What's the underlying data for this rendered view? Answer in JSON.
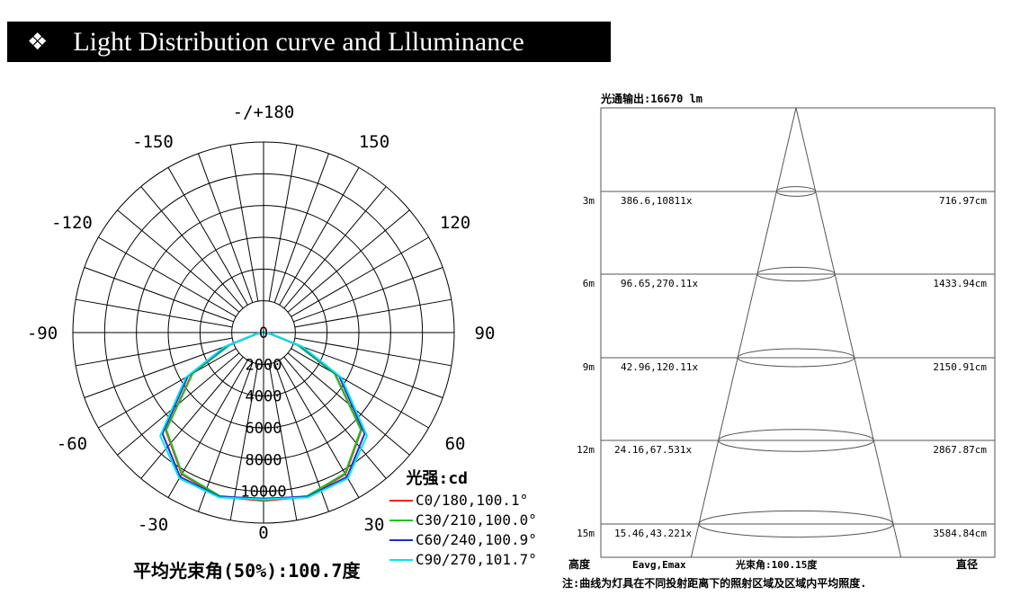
{
  "header": {
    "icon": "four-diamond-icon",
    "title": "Light Distribution curve and Llluminance"
  },
  "colors": {
    "c0": "#ff2020",
    "c30": "#22c022",
    "c60": "#1a2fd0",
    "c90": "#00e5f0"
  },
  "chart_data": [
    {
      "type": "polar",
      "angle_labels": [
        "-/+180",
        "150",
        "120",
        "90",
        "60",
        "30",
        "0",
        "-30",
        "-60",
        "-90",
        "-120",
        "-150"
      ],
      "radial_ticks": [
        0,
        2000,
        4000,
        6000,
        8000,
        10000
      ],
      "unit_label": "光强:cd",
      "series": [
        {
          "name": "C0/180,100.1°",
          "color": "#ff2020",
          "angles": [
            0,
            15,
            30,
            45,
            60,
            70,
            80,
            90
          ],
          "values": [
            10600,
            10700,
            10300,
            8700,
            5200,
            2300,
            450,
            0
          ]
        },
        {
          "name": "C30/210,100.0°",
          "color": "#22c022",
          "angles": [
            0,
            15,
            30,
            45,
            60,
            70,
            80,
            90
          ],
          "values": [
            10550,
            10650,
            10250,
            8650,
            5150,
            2250,
            430,
            0
          ]
        },
        {
          "name": "C60/240,100.9°",
          "color": "#1a2fd0",
          "angles": [
            0,
            15,
            30,
            45,
            60,
            70,
            80,
            90
          ],
          "values": [
            10450,
            10700,
            10500,
            9000,
            5500,
            2500,
            480,
            0
          ]
        },
        {
          "name": "C90/270,101.7°",
          "color": "#00e5f0",
          "angles": [
            0,
            15,
            30,
            45,
            60,
            70,
            80,
            90
          ],
          "values": [
            10500,
            10750,
            10600,
            9200,
            5650,
            2600,
            500,
            0
          ]
        }
      ],
      "footer": "平均光束角(50%):100.7度"
    },
    {
      "type": "table",
      "title": "光通输出:16670 lm",
      "rows": [
        {
          "height": "3m",
          "e": "386.6,10811x",
          "diameter": "716.97cm"
        },
        {
          "height": "6m",
          "e": "96.65,270.11x",
          "diameter": "1433.94cm"
        },
        {
          "height": "9m",
          "e": "42.96,120.11x",
          "diameter": "2150.91cm"
        },
        {
          "height": "12m",
          "e": "24.16,67.531x",
          "diameter": "2867.87cm"
        },
        {
          "height": "15m",
          "e": "15.46,43.221x",
          "diameter": "3584.84cm"
        }
      ],
      "footer": {
        "height_label": "高度",
        "e_label": "Eavg,Emax",
        "beam_angle": "光束角:100.15度",
        "diameter_label": "直径"
      },
      "note": "注:曲线为灯具在不同投射距离下的照射区域及区域内平均照度."
    }
  ]
}
